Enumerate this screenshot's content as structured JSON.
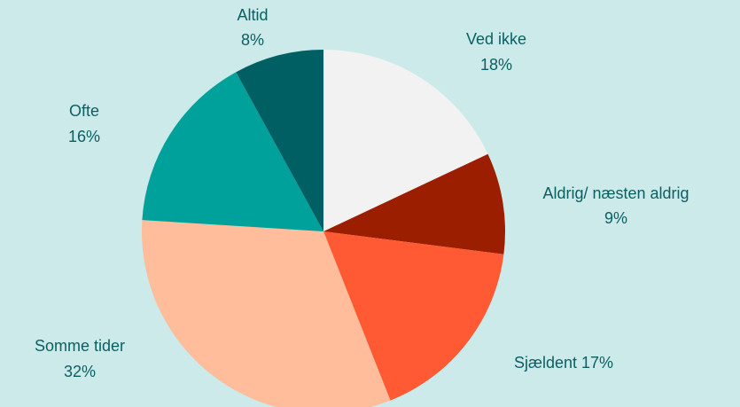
{
  "chart_data": {
    "type": "pie",
    "categories": [
      "Ved ikke",
      "Aldrig/ næsten aldrig",
      "Sjældent",
      "Somme tider",
      "Ofte",
      "Altid"
    ],
    "values": [
      18,
      9,
      17,
      32,
      16,
      8
    ],
    "value_labels": [
      "18%",
      "9%",
      "17%",
      "32%",
      "16%",
      "8%"
    ],
    "colors": [
      "#f2f2f2",
      "#9c1e00",
      "#ff5a33",
      "#ffbd9c",
      "#00a19a",
      "#005f63"
    ]
  }
}
